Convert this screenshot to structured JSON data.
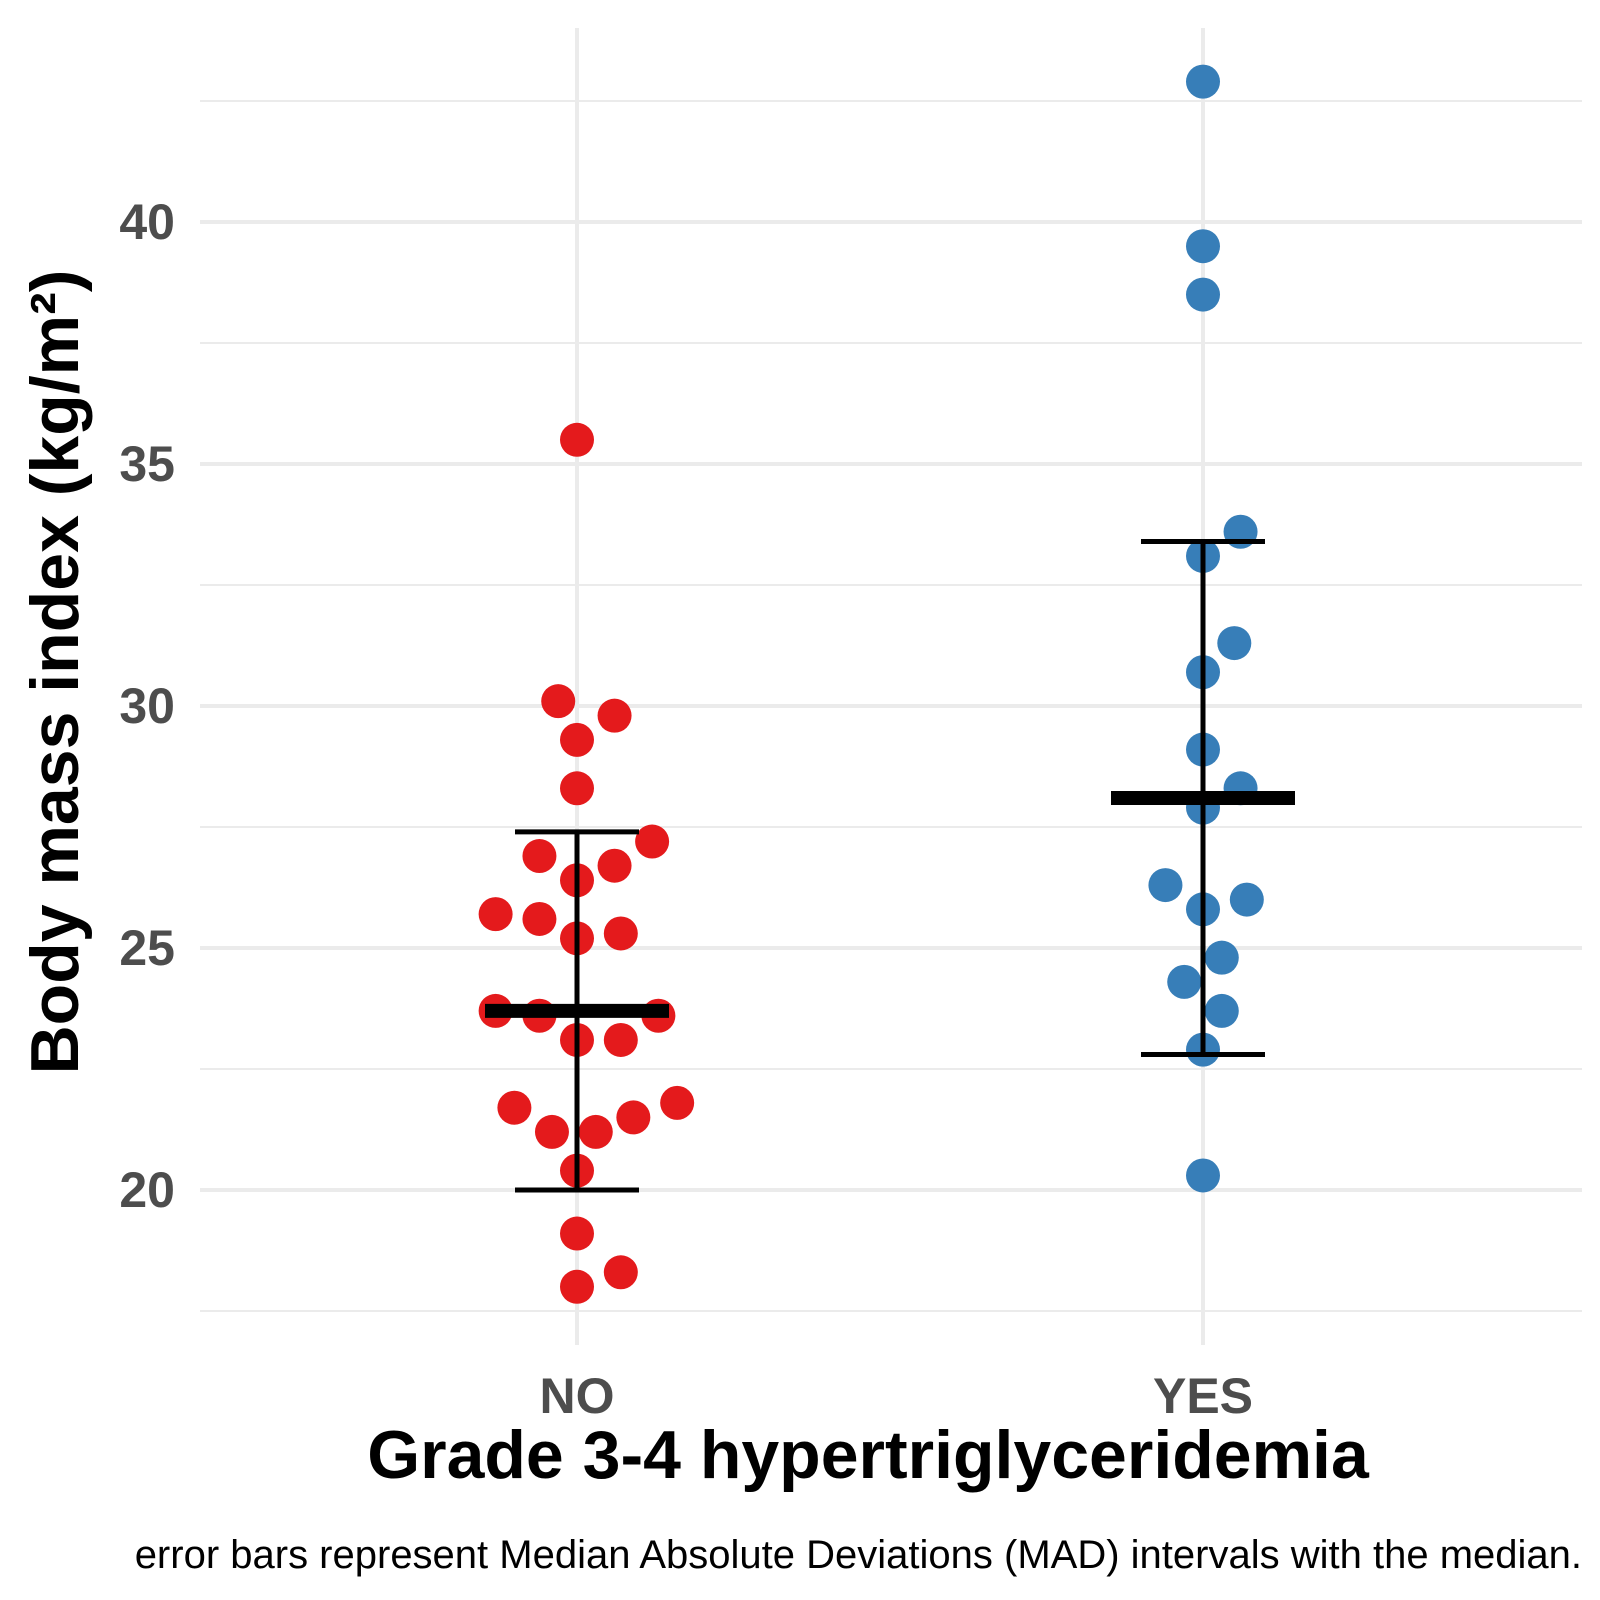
{
  "chart_data": {
    "type": "scatter",
    "xlabel": "Grade 3-4 hypertriglyceridemia",
    "ylabel": "Body mass index (kg/m²)",
    "caption": "error bars represent Median Absolute Deviations (MAD) intervals with the median.",
    "categories": [
      "NO",
      "YES"
    ],
    "ylim": [
      17,
      43.5
    ],
    "yticks": [
      20,
      25,
      30,
      35,
      40
    ],
    "grid": true,
    "legend": "none",
    "series": [
      {
        "category": "NO",
        "color": "#e41a1c",
        "points": [
          {
            "dx": 0.0,
            "y": 35.5
          },
          {
            "dx": -0.03,
            "y": 30.1
          },
          {
            "dx": 0.06,
            "y": 29.8
          },
          {
            "dx": 0.0,
            "y": 29.3
          },
          {
            "dx": 0.0,
            "y": 28.3
          },
          {
            "dx": 0.12,
            "y": 27.2
          },
          {
            "dx": -0.06,
            "y": 26.9
          },
          {
            "dx": 0.06,
            "y": 26.7
          },
          {
            "dx": 0.0,
            "y": 26.4
          },
          {
            "dx": -0.13,
            "y": 25.7
          },
          {
            "dx": -0.06,
            "y": 25.6
          },
          {
            "dx": 0.07,
            "y": 25.3
          },
          {
            "dx": 0.0,
            "y": 25.2
          },
          {
            "dx": -0.13,
            "y": 23.7
          },
          {
            "dx": -0.06,
            "y": 23.6
          },
          {
            "dx": 0.13,
            "y": 23.6
          },
          {
            "dx": 0.0,
            "y": 23.1
          },
          {
            "dx": 0.07,
            "y": 23.1
          },
          {
            "dx": 0.16,
            "y": 21.8
          },
          {
            "dx": -0.1,
            "y": 21.7
          },
          {
            "dx": 0.09,
            "y": 21.5
          },
          {
            "dx": -0.04,
            "y": 21.2
          },
          {
            "dx": 0.03,
            "y": 21.2
          },
          {
            "dx": 0.0,
            "y": 20.4
          },
          {
            "dx": 0.0,
            "y": 19.1
          },
          {
            "dx": 0.07,
            "y": 18.3
          },
          {
            "dx": 0.0,
            "y": 18.0
          }
        ],
        "median": 23.7,
        "mad_low": 20.0,
        "mad_high": 27.4
      },
      {
        "category": "YES",
        "color": "#377eb8",
        "points": [
          {
            "dx": 0.0,
            "y": 42.9
          },
          {
            "dx": 0.0,
            "y": 39.5
          },
          {
            "dx": 0.0,
            "y": 38.5
          },
          {
            "dx": 0.06,
            "y": 33.6
          },
          {
            "dx": 0.0,
            "y": 33.1
          },
          {
            "dx": 0.05,
            "y": 31.3
          },
          {
            "dx": 0.0,
            "y": 30.7
          },
          {
            "dx": 0.0,
            "y": 29.1
          },
          {
            "dx": 0.06,
            "y": 28.3
          },
          {
            "dx": 0.0,
            "y": 27.9
          },
          {
            "dx": -0.06,
            "y": 26.3
          },
          {
            "dx": 0.07,
            "y": 26.0
          },
          {
            "dx": 0.0,
            "y": 25.8
          },
          {
            "dx": 0.03,
            "y": 24.8
          },
          {
            "dx": -0.03,
            "y": 24.3
          },
          {
            "dx": 0.03,
            "y": 23.7
          },
          {
            "dx": 0.0,
            "y": 22.9
          },
          {
            "dx": 0.0,
            "y": 20.3
          }
        ],
        "median": 28.1,
        "mad_low": 22.8,
        "mad_high": 33.4
      }
    ]
  }
}
